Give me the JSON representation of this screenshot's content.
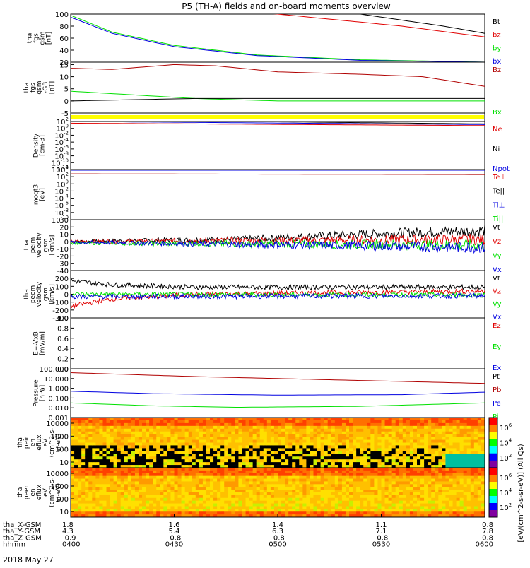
{
  "title": "P5 (TH-A) fields and on-board moments overview",
  "date": "2018 May 27",
  "colors": {
    "black": "#000000",
    "red": "#e00000",
    "green": "#00e000",
    "blue": "#0000e0",
    "darkred": "#b00000",
    "yellow": "#ffff00"
  },
  "chart_data": [
    {
      "type": "line",
      "ylabel": [
        "tha",
        "fgs",
        "gsm",
        "[nT]"
      ],
      "ylim": [
        20,
        100
      ],
      "yticks": [
        20,
        40,
        60,
        80,
        100
      ],
      "legend": [
        "Bt",
        "bz",
        "by",
        "bx"
      ],
      "legend_colors": [
        "black",
        "red",
        "green",
        "blue"
      ],
      "series": [
        {
          "name": "Bt",
          "color": "black",
          "x": [
            0.0,
            0.7,
            0.9,
            1.0
          ],
          "values": [
            148,
            100,
            80,
            68
          ]
        },
        {
          "name": "bz",
          "color": "red",
          "x": [
            0.0,
            0.5,
            0.8,
            1.0
          ],
          "values": [
            130,
            100,
            80,
            62
          ]
        },
        {
          "name": "by",
          "color": "green",
          "x": [
            0.0,
            0.1,
            0.25,
            0.45,
            0.7,
            1.0
          ],
          "values": [
            98,
            70,
            48,
            32,
            24,
            20
          ]
        },
        {
          "name": "bx",
          "color": "blue",
          "x": [
            0.0,
            0.1,
            0.25,
            0.45,
            0.7,
            1.0
          ],
          "values": [
            95,
            68,
            46,
            31,
            23,
            20
          ]
        }
      ]
    },
    {
      "type": "line",
      "ylabel": [
        "tha",
        "fgs",
        "gsm",
        "-GB",
        "[nT]"
      ],
      "ylim": [
        -5,
        16
      ],
      "yticks": [
        -5,
        0,
        5,
        10,
        15
      ],
      "legend": [
        "Bz",
        "Bx"
      ],
      "legend_colors": [
        "darkred",
        "green"
      ],
      "series": [
        {
          "name": "Bz",
          "color": "darkred",
          "x": [
            0.0,
            0.1,
            0.25,
            0.35,
            0.5,
            0.7,
            0.85,
            1.0
          ],
          "values": [
            13.5,
            13,
            15,
            14.5,
            12,
            11,
            10,
            6
          ]
        },
        {
          "name": "Bx",
          "color": "green",
          "x": [
            0.0,
            0.1,
            0.3,
            0.5,
            1.0
          ],
          "values": [
            4,
            3,
            1,
            0,
            0
          ]
        },
        {
          "name": "",
          "color": "black",
          "x": [
            0.0,
            0.3,
            0.6,
            1.0
          ],
          "values": [
            0,
            1,
            1,
            1
          ]
        }
      ]
    },
    {
      "type": "bar_strip",
      "color": "yellow"
    },
    {
      "type": "line",
      "ylog": true,
      "ylabel": [
        "Density",
        "[cm-3]"
      ],
      "yticks_labels": [
        "10^2",
        "10^0",
        "10^-2",
        "10^-4",
        "10^-6",
        "10^-8",
        "10^-10",
        "10^-12"
      ],
      "legend": [
        "Ne",
        "Ni",
        "Npot"
      ],
      "legend_colors": [
        "red",
        "black",
        "blue"
      ],
      "series": [
        {
          "name": "Ne",
          "color": "red",
          "x": [
            0,
            1
          ],
          "values": [
            1.5,
            0.8
          ]
        },
        {
          "name": "Ni",
          "color": "black",
          "x": [
            0,
            1
          ],
          "values": [
            2.5,
            1.3
          ]
        },
        {
          "name": "Npot",
          "color": "blue",
          "x": [
            0,
            1
          ],
          "values": [
            2.0,
            1.1
          ]
        }
      ]
    },
    {
      "type": "line",
      "ylog": true,
      "ylabel": [
        "moqt3",
        "[eV]"
      ],
      "yticks_labels": [
        "10^4",
        "10^2",
        "10^0",
        "10^-2",
        "10^-4",
        "10^-6",
        "10^-8",
        "10^-10"
      ],
      "legend": [
        "Te⊥",
        "Te||",
        "Ti⊥",
        "Ti||"
      ],
      "legend_colors": [
        "red",
        "black",
        "blue",
        "green"
      ],
      "series": [
        {
          "name": "Ti⊥",
          "color": "blue",
          "x": [
            0,
            1
          ],
          "values": [
            3.8,
            3.8
          ]
        },
        {
          "name": "Te⊥",
          "color": "darkred",
          "x": [
            0,
            1
          ],
          "values": [
            2.8,
            2.6
          ]
        }
      ]
    },
    {
      "type": "line",
      "ylabel": [
        "tha",
        "peim",
        "velocity",
        "gsm",
        "[km/s]"
      ],
      "ylim": [
        -40,
        30
      ],
      "yticks": [
        30,
        20,
        10,
        0,
        -10,
        -20,
        -30,
        -40
      ],
      "legend": [
        "Vt",
        "Vz",
        "Vy",
        "Vx"
      ],
      "legend_colors": [
        "black",
        "red",
        "green",
        "blue"
      ],
      "series": [
        {
          "name": "Vt",
          "color": "black",
          "x": [
            0,
            0.4,
            0.8,
            1.0
          ],
          "values": [
            0,
            3,
            12,
            15
          ]
        },
        {
          "name": "Vz",
          "color": "red",
          "x": [
            0,
            1
          ],
          "values": [
            0,
            3
          ]
        },
        {
          "name": "Vy",
          "color": "green",
          "x": [
            0,
            1
          ],
          "values": [
            -2,
            -5
          ]
        },
        {
          "name": "Vx",
          "color": "blue",
          "x": [
            0,
            1
          ],
          "values": [
            -1,
            -8
          ]
        }
      ]
    },
    {
      "type": "line",
      "ylabel": [
        "tha",
        "peem",
        "velocity",
        "gsm",
        "[km/s]"
      ],
      "ylim": [
        -300,
        300
      ],
      "yticks": [
        200,
        100,
        0,
        -100,
        -200,
        -300
      ],
      "legend": [
        "Vt",
        "Vz",
        "Vy",
        "Vx"
      ],
      "legend_colors": [
        "black",
        "red",
        "green",
        "blue"
      ],
      "series": [
        {
          "name": "Vt",
          "color": "black",
          "x": [
            0,
            0.1,
            0.3,
            1.0
          ],
          "values": [
            170,
            120,
            90,
            90
          ]
        },
        {
          "name": "Vz",
          "color": "red",
          "x": [
            0,
            0.1,
            0.3,
            1.0
          ],
          "values": [
            -150,
            -60,
            0,
            40
          ]
        },
        {
          "name": "Vy",
          "color": "green",
          "x": [
            0,
            1
          ],
          "values": [
            0,
            -10
          ]
        },
        {
          "name": "Vx",
          "color": "blue",
          "x": [
            0,
            1
          ],
          "values": [
            -30,
            -20
          ]
        }
      ]
    },
    {
      "type": "line",
      "ylabel": [
        "E=-VxB",
        "[mV/m]"
      ],
      "ylim": [
        0,
        1
      ],
      "yticks": [
        1.0,
        0.8,
        0.6,
        0.4,
        0.2,
        0.0
      ],
      "legend": [
        "Ez",
        "Ey",
        "Ex"
      ],
      "legend_colors": [
        "red",
        "green",
        "blue"
      ],
      "series": []
    },
    {
      "type": "line",
      "ylog": true,
      "ylabel": [
        "Pressure",
        "[nPa]"
      ],
      "yticks_labels": [
        "100.000",
        "10.000",
        "1.000",
        "0.100",
        "0.010",
        "0.001"
      ],
      "legend": [
        "Pt",
        "Pb",
        "Pe",
        "Pi"
      ],
      "legend_colors": [
        "black",
        "darkred",
        "blue",
        "green"
      ],
      "series": [
        {
          "name": "Pt",
          "color": "darkred",
          "x": [
            0,
            0.3,
            0.6,
            1.0
          ],
          "values": [
            1.6,
            1.2,
            0.9,
            0.5
          ]
        },
        {
          "name": "Pe",
          "color": "blue",
          "x": [
            0,
            0.2,
            0.5,
            0.8,
            1.0
          ],
          "values": [
            -0.3,
            -0.55,
            -0.7,
            -0.65,
            -0.4
          ]
        },
        {
          "name": "Pi",
          "color": "green",
          "x": [
            0,
            0.2,
            0.4,
            0.7,
            1.0
          ],
          "values": [
            -1.5,
            -1.8,
            -1.95,
            -1.85,
            -1.5
          ]
        }
      ]
    },
    {
      "type": "heatmap",
      "ylabel": [
        "tha",
        "peir",
        "en",
        "eflux",
        "eV",
        "(cm^2-s-",
        "sr-eV)"
      ],
      "yticks": [
        "10000",
        "1000",
        "100",
        "10"
      ],
      "colorbar_ticks": [
        "10^6",
        "10^4",
        "10^2"
      ]
    },
    {
      "type": "heatmap",
      "ylabel": [
        "tha",
        "peer",
        "en",
        "eflux",
        "eV",
        "(cm^2-s-",
        "sr-eV)"
      ],
      "yticks": [
        "10000",
        "1000",
        "100",
        "10"
      ],
      "colorbar_ticks": [
        "10^6",
        "10^4",
        "10^2"
      ]
    }
  ],
  "colorbar_label": "[eV/(cm^2-s-sr-eV)] (All Qs)",
  "xaxis": {
    "row_labels": [
      "tha_X-GSM",
      "tha_Y-GSM",
      "tha_Z-GSM",
      "hhmm"
    ],
    "columns": [
      [
        "1.8",
        "4.3",
        "-0.9",
        "0400"
      ],
      [
        "1.6",
        "5.4",
        "-0.8",
        "0430"
      ],
      [
        "1.4",
        "6.3",
        "-0.8",
        "0500"
      ],
      [
        "1.1",
        "7.1",
        "-0.8",
        "0530"
      ],
      [
        "0.8",
        "7.8",
        "-0.8",
        "0600"
      ]
    ]
  }
}
